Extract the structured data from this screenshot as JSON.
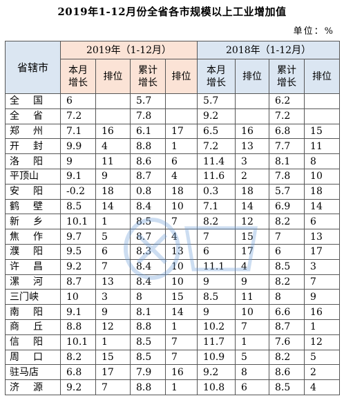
{
  "title": "2019年1-12月份全省各市规模以上工业增加值",
  "unit": "单位：%",
  "headers": {
    "region": "省辖市",
    "year2019": "2019年（1-12月）",
    "year2018": "2018年（1-12月）",
    "month_growth": [
      "本月",
      "增长"
    ],
    "rank": "排位",
    "cumulative_growth": [
      "累计",
      "增长"
    ]
  },
  "rows": [
    {
      "name": "全国",
      "v": [
        "6",
        "",
        "5.7",
        "",
        "5.7",
        "",
        "6.2",
        ""
      ]
    },
    {
      "name": "全省",
      "v": [
        "7.2",
        "",
        "7.8",
        "",
        "9.2",
        "",
        "7.2",
        ""
      ]
    },
    {
      "name": "郑州",
      "v": [
        "7.1",
        "16",
        "6.1",
        "17",
        "6.5",
        "16",
        "6.8",
        "15"
      ]
    },
    {
      "name": "开封",
      "v": [
        "9.9",
        "4",
        "8.8",
        "1",
        "7.2",
        "13",
        "7.7",
        "11"
      ]
    },
    {
      "name": "洛阳",
      "v": [
        "9",
        "11",
        "8.6",
        "6",
        "11.4",
        "3",
        "8.1",
        "8"
      ]
    },
    {
      "name": "平顶山",
      "v": [
        "9.1",
        "9",
        "8.7",
        "4",
        "11.6",
        "2",
        "7.8",
        "10"
      ]
    },
    {
      "name": "安阳",
      "v": [
        "-0.2",
        "18",
        "0.8",
        "18",
        "0.3",
        "18",
        "5.7",
        "18"
      ]
    },
    {
      "name": "鹤壁",
      "v": [
        "8.5",
        "14",
        "8.4",
        "10",
        "7.1",
        "14",
        "6.9",
        "14"
      ]
    },
    {
      "name": "新乡",
      "v": [
        "10.1",
        "1",
        "8.5",
        "7",
        "8.2",
        "12",
        "8.2",
        "6"
      ]
    },
    {
      "name": "焦作",
      "v": [
        "9.7",
        "5",
        "8.7",
        "4",
        "7",
        "15",
        "7",
        "13"
      ]
    },
    {
      "name": "濮阳",
      "v": [
        "9.5",
        "6",
        "8.3",
        "13",
        "6",
        "17",
        "6",
        "17"
      ]
    },
    {
      "name": "许昌",
      "v": [
        "9.2",
        "7",
        "8.4",
        "10",
        "11.1",
        "4",
        "8.5",
        "3"
      ]
    },
    {
      "name": "漯河",
      "v": [
        "8.7",
        "13",
        "8.4",
        "10",
        "9",
        "9",
        "8.2",
        "7"
      ]
    },
    {
      "name": "三门峡",
      "v": [
        "10",
        "3",
        "8",
        "15",
        "8.5",
        "11",
        "8",
        "9"
      ]
    },
    {
      "name": "南阳",
      "v": [
        "9.1",
        "9",
        "8.1",
        "14",
        "9",
        "10",
        "6.6",
        "16"
      ]
    },
    {
      "name": "商丘",
      "v": [
        "8.8",
        "12",
        "8.8",
        "1",
        "10.2",
        "7",
        "8.7",
        "1"
      ]
    },
    {
      "name": "信阳",
      "v": [
        "10.1",
        "1",
        "8.5",
        "7",
        "11.7",
        "1",
        "7.6",
        "12"
      ]
    },
    {
      "name": "周口",
      "v": [
        "8.2",
        "15",
        "8.5",
        "7",
        "10.9",
        "5",
        "8.2",
        "5"
      ]
    },
    {
      "name": "驻马店",
      "v": [
        "6.8",
        "17",
        "7.9",
        "16",
        "9.2",
        "8",
        "8.6",
        "2"
      ]
    },
    {
      "name": "济源",
      "v": [
        "9.2",
        "7",
        "8.8",
        "1",
        "10.8",
        "6",
        "8.5",
        "4"
      ]
    }
  ],
  "watermark_icon": "dahe-watermark-icon"
}
